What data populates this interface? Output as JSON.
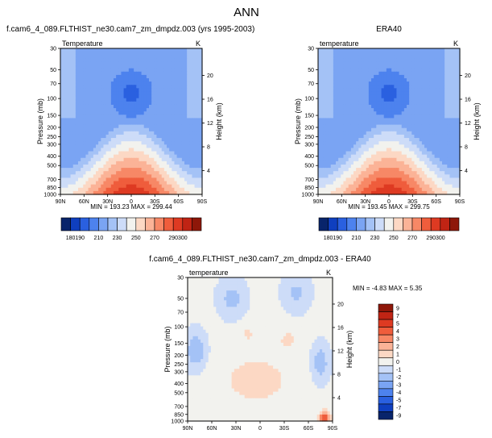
{
  "page_title": "ANN",
  "colors": {
    "text": "#000000",
    "frame": "#000000"
  },
  "chart_data": [
    {
      "id": "model",
      "type": "heatmap",
      "title": "f.cam6_4_089.FLTHIST_ne30.cam7_zm_dmpdz.003 (yrs 1995-2003)",
      "left_label": "Temperature",
      "right_label": "K",
      "ylabel": "Pressure (mb)",
      "ylabel_right": "Height (km)",
      "x_ticks": [
        "90N",
        "60N",
        "30N",
        "0",
        "30S",
        "60S",
        "90S"
      ],
      "y_ticks": [
        "30",
        "50",
        "70",
        "100",
        "150",
        "200",
        "250",
        "300",
        "400",
        "500",
        "700",
        "850",
        "1000"
      ],
      "y_ticks_right": [
        "20",
        "16",
        "12",
        "8",
        "4"
      ],
      "ylim_mb": [
        1000,
        30
      ],
      "stats": "MIN = 193.23   MAX = 299.44",
      "min": 193.23,
      "max": 299.44
    },
    {
      "id": "obs",
      "type": "heatmap",
      "title": "ERA40",
      "left_label": "temperature",
      "right_label": "K",
      "ylabel": "Pressure (mb)",
      "ylabel_right": "Height (km)",
      "x_ticks": [
        "90N",
        "60N",
        "30N",
        "0",
        "30S",
        "60S",
        "90S"
      ],
      "y_ticks": [
        "30",
        "50",
        "70",
        "100",
        "150",
        "200",
        "250",
        "300",
        "400",
        "500",
        "700",
        "850",
        "1000"
      ],
      "y_ticks_right": [
        "20",
        "16",
        "12",
        "8",
        "4"
      ],
      "ylim_mb": [
        1000,
        30
      ],
      "stats": "MIN = 193.45   MAX = 299.75",
      "min": 193.45,
      "max": 299.75
    },
    {
      "id": "diff",
      "type": "heatmap",
      "title": "f.cam6_4_089.FLTHIST_ne30.cam7_zm_dmpdz.003 - ERA40",
      "left_label": "temperature",
      "right_label": "K",
      "ylabel": "Pressure (mb)",
      "ylabel_right": "Height (km)",
      "x_ticks": [
        "90N",
        "60N",
        "30N",
        "0",
        "30S",
        "60S",
        "90S"
      ],
      "y_ticks": [
        "30",
        "50",
        "70",
        "100",
        "150",
        "200",
        "250",
        "300",
        "400",
        "500",
        "700",
        "850",
        "1000"
      ],
      "y_ticks_right": [
        "20",
        "16",
        "12",
        "8",
        "4"
      ],
      "ylim_mb": [
        1000,
        30
      ],
      "stats": "MIN = -4.83   MAX =  5.35",
      "min": -4.83,
      "max": 5.35
    }
  ],
  "colorbar_abs": {
    "labels": [
      "180",
      "190",
      "210",
      "230",
      "250",
      "270",
      "290",
      "300"
    ],
    "colors": [
      "#08246b",
      "#0f3fbf",
      "#2a60e0",
      "#4d82ee",
      "#7aa4f3",
      "#a4c2f6",
      "#cddcf8",
      "#f2f2ee",
      "#fcd8c4",
      "#fbb397",
      "#f78866",
      "#ef5d3c",
      "#de3a22",
      "#c02414",
      "#8e1709"
    ]
  },
  "colorbar_diff": {
    "labels": [
      "9",
      "7",
      "5",
      "4",
      "3",
      "2",
      "1",
      "0",
      "-1",
      "-2",
      "-3",
      "-4",
      "-5",
      "-7",
      "-9"
    ],
    "colors": [
      "#8e1709",
      "#c02414",
      "#de3a22",
      "#ef5d3c",
      "#f78866",
      "#fbb397",
      "#fcd8c4",
      "#f2f2ee",
      "#cddcf8",
      "#a4c2f6",
      "#7aa4f3",
      "#4d82ee",
      "#2a60e0",
      "#0f3fbf",
      "#08246b"
    ]
  }
}
